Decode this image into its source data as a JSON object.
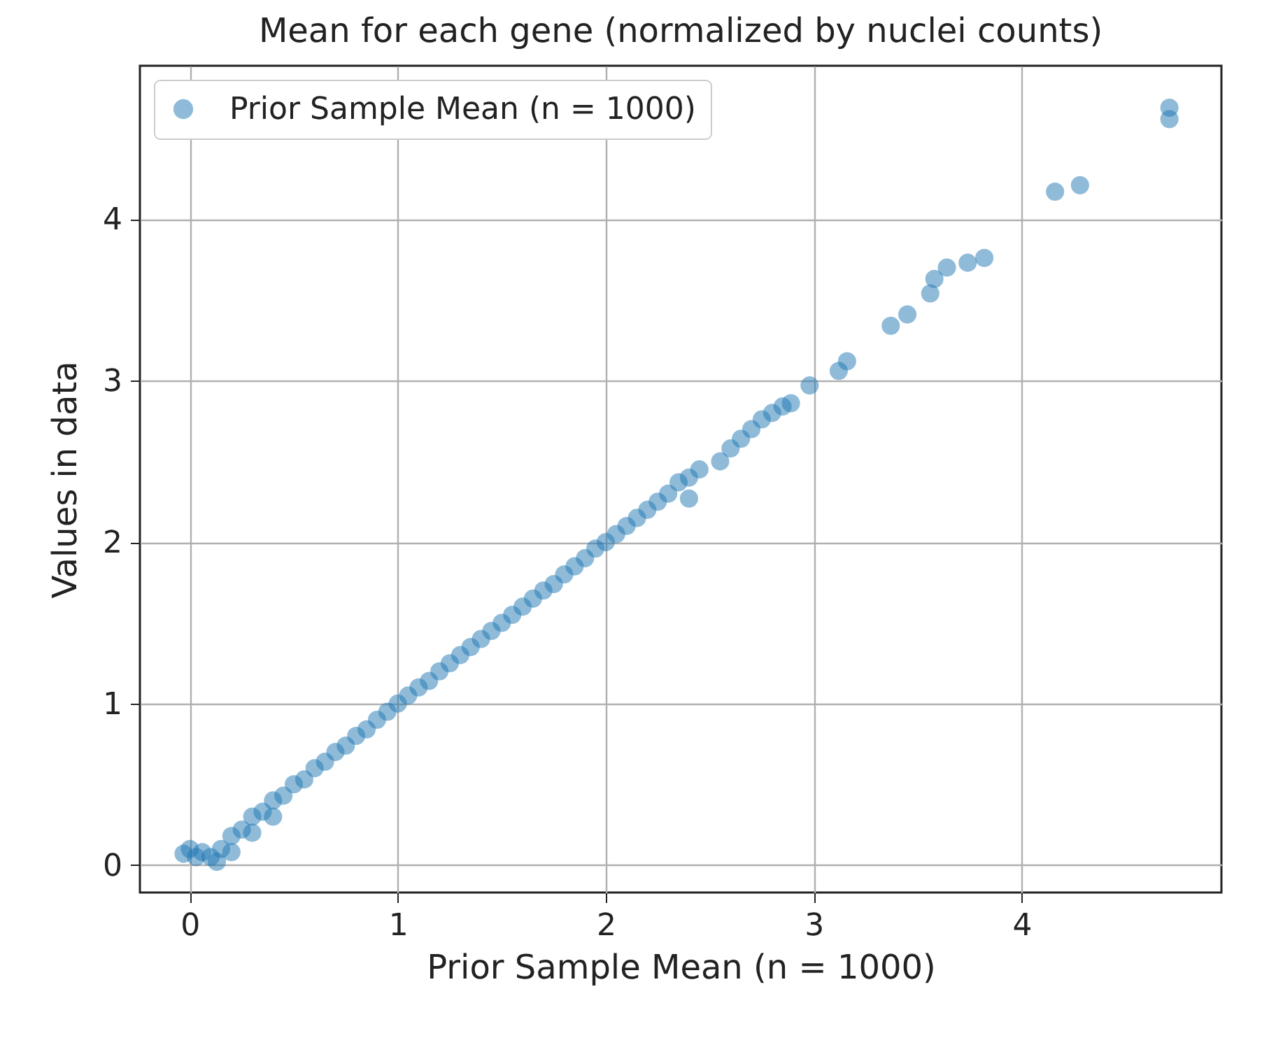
{
  "chart_data": {
    "type": "scatter",
    "title": "Mean for each gene (normalized by nuclei counts)",
    "xlabel": "Prior Sample Mean (n = 1000)",
    "ylabel": "Values in data",
    "xlim": [
      -0.24,
      4.96
    ],
    "ylim": [
      -0.17,
      4.95
    ],
    "xticks": [
      0,
      1,
      2,
      3,
      4
    ],
    "yticks": [
      0,
      1,
      2,
      3,
      4
    ],
    "grid": true,
    "legend": "top left",
    "marker": "circle",
    "series": [
      {
        "name": "Prior Sample Mean (n = 1000)",
        "color": "#1f77b4",
        "x": [
          -0.03,
          0,
          0.03,
          0.06,
          0.1,
          0.13,
          0.15,
          0.2,
          0.2,
          0.25,
          0.3,
          0.3,
          0.35,
          0.4,
          0.4,
          0.45,
          0.5,
          0.55,
          0.6,
          0.65,
          0.7,
          0.75,
          0.8,
          0.85,
          0.9,
          0.95,
          1,
          1.05,
          1.1,
          1.15,
          1.2,
          1.25,
          1.3,
          1.35,
          1.4,
          1.45,
          1.5,
          1.55,
          1.6,
          1.65,
          1.7,
          1.75,
          1.8,
          1.85,
          1.9,
          1.95,
          2,
          2.05,
          2.1,
          2.15,
          2.2,
          2.25,
          2.3,
          2.35,
          2.4,
          2.4,
          2.45,
          2.55,
          2.6,
          2.65,
          2.7,
          2.75,
          2.8,
          2.85,
          2.89,
          2.98,
          3.12,
          3.16,
          3.37,
          3.45,
          3.56,
          3.58,
          3.64,
          3.74,
          3.82,
          4.16,
          4.28,
          4.71,
          4.71
        ],
        "values": [
          0.07,
          0.1,
          0.05,
          0.08,
          0.05,
          0.02,
          0.1,
          0.18,
          0.08,
          0.22,
          0.3,
          0.2,
          0.33,
          0.4,
          0.3,
          0.43,
          0.5,
          0.53,
          0.6,
          0.64,
          0.7,
          0.74,
          0.8,
          0.84,
          0.9,
          0.95,
          1,
          1.05,
          1.1,
          1.14,
          1.2,
          1.25,
          1.3,
          1.35,
          1.4,
          1.45,
          1.5,
          1.55,
          1.6,
          1.65,
          1.7,
          1.74,
          1.8,
          1.85,
          1.9,
          1.96,
          2,
          2.05,
          2.1,
          2.15,
          2.2,
          2.25,
          2.3,
          2.37,
          2.4,
          2.27,
          2.45,
          2.5,
          2.58,
          2.64,
          2.7,
          2.76,
          2.8,
          2.84,
          2.86,
          2.97,
          3.06,
          3.12,
          3.34,
          3.41,
          3.54,
          3.63,
          3.7,
          3.73,
          3.76,
          4.17,
          4.21,
          4.69,
          4.62
        ]
      }
    ]
  }
}
